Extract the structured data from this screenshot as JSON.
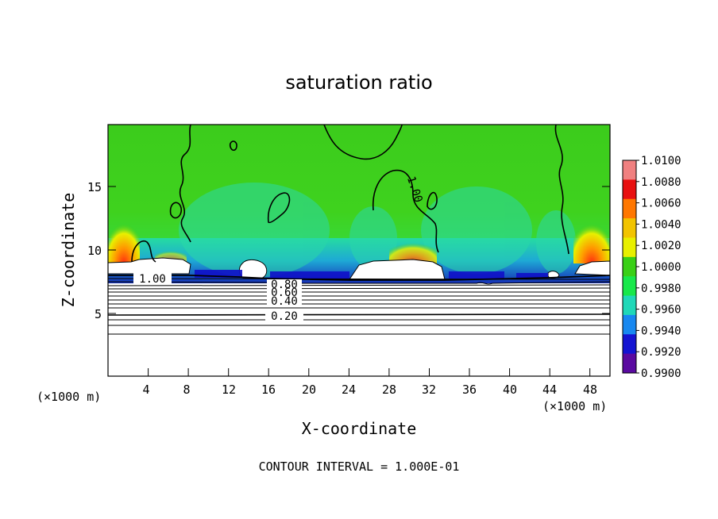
{
  "chart_data": {
    "type": "heatmap",
    "title": "saturation ratio",
    "xlabel": "X-coordinate",
    "ylabel": "Z-coordinate",
    "x_unit_left": "(×1000 m)",
    "x_unit_right": "(×1000 m)",
    "xlim": [
      0,
      50
    ],
    "ylim": [
      0,
      20
    ],
    "x_ticks": [
      "4",
      "8",
      "12",
      "16",
      "20",
      "24",
      "28",
      "32",
      "36",
      "40",
      "44",
      "48"
    ],
    "y_ticks": [
      "5",
      "10",
      "15"
    ],
    "colorbar": {
      "labels": [
        "1.0100",
        "1.0080",
        "1.0060",
        "1.0040",
        "1.0020",
        "1.0000",
        "0.9980",
        "0.9960",
        "0.9940",
        "0.9920",
        "0.9900"
      ],
      "colors": [
        "#f08080",
        "#e81010",
        "#ff7700",
        "#f2c400",
        "#e8f000",
        "#39d016",
        "#18e84a",
        "#20d8b8",
        "#1888f0",
        "#1414d2",
        "#5a0aa0"
      ]
    },
    "contour_labels": [
      "1.00",
      "1.00",
      "0.80",
      "0.60",
      "0.40",
      "0.20"
    ],
    "footer": "CONTOUR INTERVAL = 1.000E-01"
  }
}
